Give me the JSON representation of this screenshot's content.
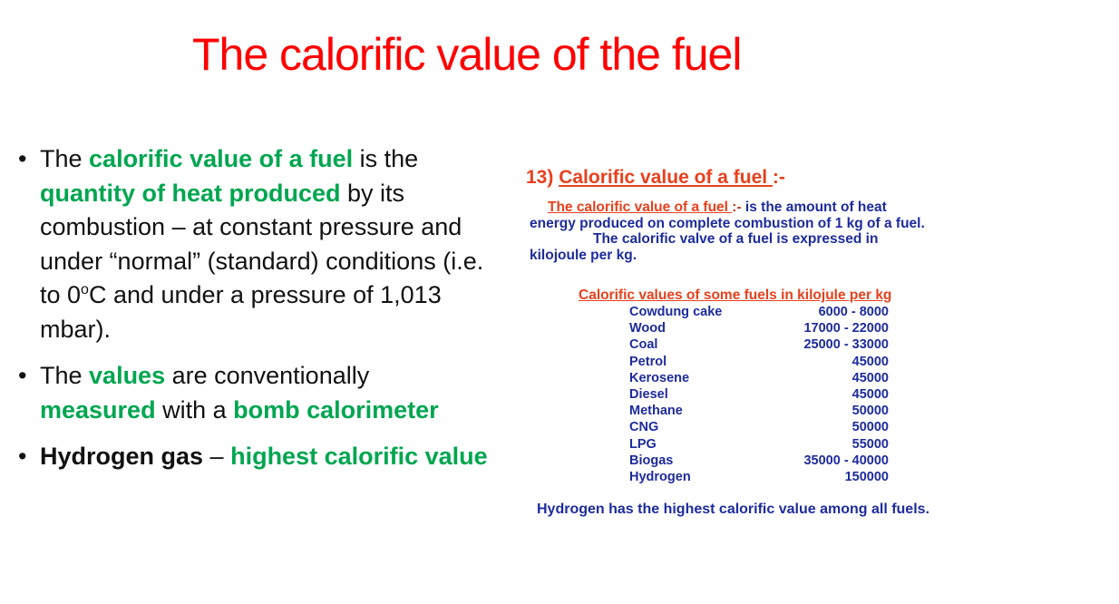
{
  "slide": {
    "title": "The calorific value of the fuel"
  },
  "bullets": [
    {
      "parts": [
        {
          "t": "The "
        },
        {
          "t": "calorific value of a fuel",
          "s": "g"
        },
        {
          "t": " is the "
        },
        {
          "t": "quantity of heat produced",
          "s": "g"
        },
        {
          "t": " by its combustion – at constant pressure and under “normal” (standard) conditions (i.e. to 0"
        },
        {
          "t": "o",
          "s": "sup"
        },
        {
          "t": "C and under a pressure of 1,013 mbar)."
        }
      ]
    },
    {
      "parts": [
        {
          "t": "The "
        },
        {
          "t": "values",
          "s": "g"
        },
        {
          "t": " are conventionally "
        },
        {
          "t": "measured",
          "s": "g"
        },
        {
          "t": " with a "
        },
        {
          "t": "bomb calorimeter",
          "s": "g"
        }
      ]
    },
    {
      "parts": [
        {
          "t": "Hydrogen gas",
          "s": "b"
        },
        {
          "t": " – "
        },
        {
          "t": "highest calorific value",
          "s": "g"
        }
      ]
    }
  ],
  "figure": {
    "heading_num": "13) ",
    "heading_text": "Calorific value of a fuel ",
    "heading_tail": ":-",
    "def_red": "The calorific value of a fuel ",
    "def_red2": ":- ",
    "def_line1_rest": "is the amount of heat",
    "def_line2": "energy produced on complete combustion of 1 kg of a fuel.",
    "def_line3": "The calorific valve of a fuel is expressed in",
    "def_line4": "kilojoule per kg.",
    "table_title": "Calorific values of some fuels in kilojule per kg",
    "rows": [
      {
        "fuel": "Cowdung cake",
        "value": "6000 - 8000"
      },
      {
        "fuel": "Wood",
        "value": "17000 - 22000"
      },
      {
        "fuel": "Coal",
        "value": "25000 - 33000"
      },
      {
        "fuel": "Petrol",
        "value": "45000"
      },
      {
        "fuel": "Kerosene",
        "value": "45000"
      },
      {
        "fuel": "Diesel",
        "value": "45000"
      },
      {
        "fuel": "Methane",
        "value": "50000"
      },
      {
        "fuel": "CNG",
        "value": "50000"
      },
      {
        "fuel": "LPG",
        "value": "55000"
      },
      {
        "fuel": "Biogas",
        "value": "35000 - 40000"
      },
      {
        "fuel": "Hydrogen",
        "value": "150000"
      }
    ],
    "footer": "Hydrogen has the highest calorific value among all fuels."
  },
  "colors": {
    "title": "#ff0000",
    "highlight_green": "#00a650",
    "figure_blue": "#1d2b9e",
    "figure_red": "#e8401c"
  }
}
